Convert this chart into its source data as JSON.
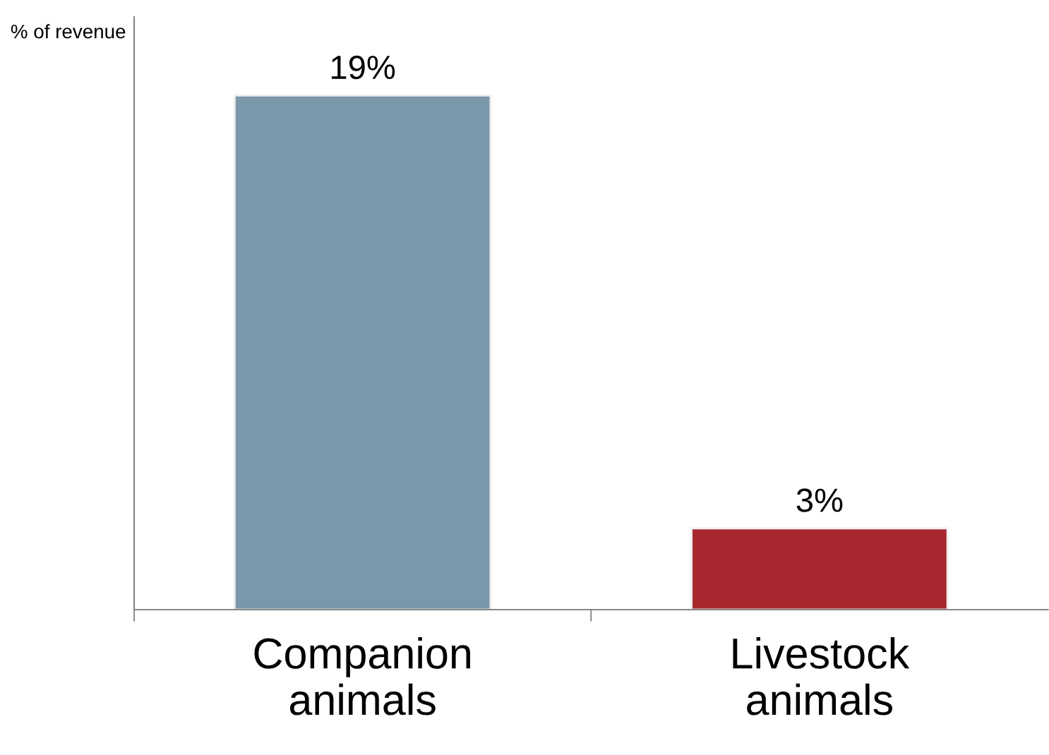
{
  "chart_data": {
    "type": "bar",
    "ylabel": "% of revenue",
    "categories": [
      "Companion\nanimals",
      "Livestock\nanimals"
    ],
    "values": [
      19,
      3
    ],
    "value_labels": [
      "19%",
      "3%"
    ],
    "colors": [
      "#7b98aa",
      "#a8282f"
    ],
    "grid": false,
    "legend": false
  }
}
